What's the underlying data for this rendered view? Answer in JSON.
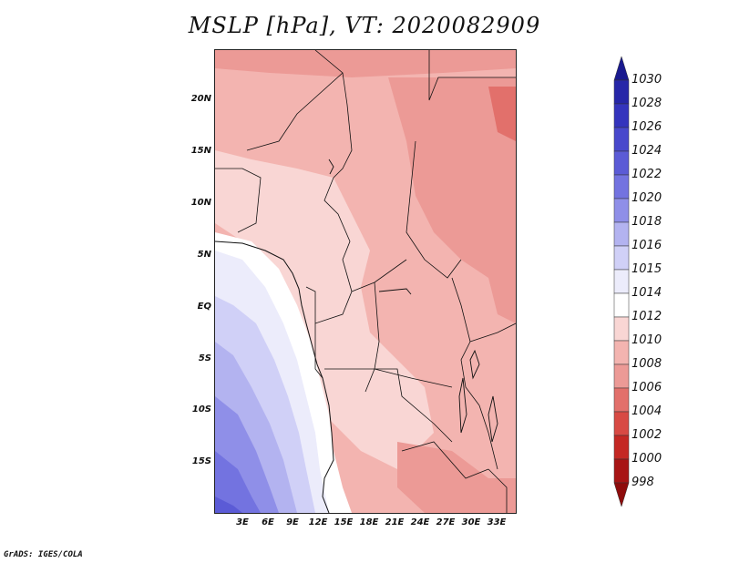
{
  "title": "MSLP [hPa], VT: 2020082909",
  "footer": "GrADS: IGES/COLA",
  "map": {
    "lat_labels": [
      "20N",
      "15N",
      "10N",
      "5N",
      "EQ",
      "5S",
      "10S",
      "15S"
    ],
    "lon_labels": [
      "3E",
      "6E",
      "9E",
      "12E",
      "15E",
      "18E",
      "21E",
      "24E",
      "27E",
      "30E",
      "33E"
    ]
  },
  "colorbar": {
    "levels": [
      "1030",
      "1028",
      "1026",
      "1024",
      "1022",
      "1020",
      "1018",
      "1016",
      "1015",
      "1014",
      "1012",
      "1010",
      "1008",
      "1006",
      "1004",
      "1002",
      "1000",
      "998"
    ],
    "colors": [
      "#1a1a8f",
      "#2626a8",
      "#3434bd",
      "#4848cc",
      "#5b5bd6",
      "#7373e0",
      "#8f8fe8",
      "#b3b3f0",
      "#d0d0f7",
      "#ececfb",
      "#ffffff",
      "#f9d6d4",
      "#f3b4b0",
      "#ec9a96",
      "#e2706b",
      "#d84a44",
      "#c42824",
      "#a81515",
      "#8e0c0c"
    ]
  }
}
